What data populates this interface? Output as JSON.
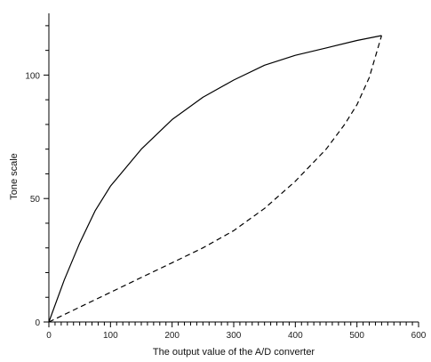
{
  "chart_data": {
    "type": "line",
    "title": "",
    "xlabel": "The output value of the A/D converter",
    "ylabel": "Tone scale",
    "xlim": [
      0,
      600
    ],
    "ylim": [
      0,
      120
    ],
    "xticks": [
      0,
      100,
      200,
      300,
      400,
      500,
      600
    ],
    "xtick_labels": [
      "0",
      "100",
      "200",
      "300",
      "400",
      "500",
      "600"
    ],
    "yticks": [
      0,
      50,
      100
    ],
    "ytick_labels": [
      "0",
      "50",
      "100"
    ],
    "grid": false,
    "legend": "none",
    "series": [
      {
        "style": "solid",
        "color": "#000000",
        "x": [
          0,
          25,
          50,
          75,
          100,
          150,
          200,
          250,
          300,
          350,
          400,
          450,
          500,
          540
        ],
        "y": [
          0,
          17,
          32,
          45,
          55,
          70,
          82,
          91,
          98,
          104,
          108,
          111,
          114,
          116
        ]
      },
      {
        "style": "dashed",
        "color": "#000000",
        "x": [
          0,
          25,
          50,
          100,
          150,
          200,
          250,
          300,
          350,
          400,
          450,
          480,
          500,
          520,
          540
        ],
        "y": [
          0,
          3,
          6,
          12,
          18,
          24,
          30,
          37,
          46,
          57,
          70,
          80,
          88,
          99,
          116
        ]
      }
    ]
  }
}
